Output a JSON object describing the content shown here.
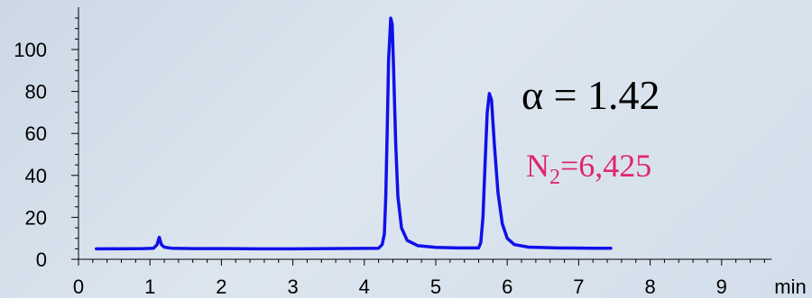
{
  "chart_data": {
    "type": "line",
    "title": "",
    "xlabel": "min",
    "ylabel": "",
    "xlim": [
      0,
      9.7
    ],
    "ylim": [
      0,
      118
    ],
    "x_ticks": [
      "0",
      "1",
      "2",
      "3",
      "4",
      "5",
      "6",
      "7",
      "8",
      "9"
    ],
    "y_ticks": [
      "0",
      "20",
      "40",
      "60",
      "80",
      "100"
    ],
    "grid": false,
    "series": [
      {
        "color": "#1010e8",
        "points": [
          [
            0.25,
            5.0
          ],
          [
            0.35,
            5.0
          ],
          [
            0.9,
            5.1
          ],
          [
            1.05,
            5.3
          ],
          [
            1.1,
            7.0
          ],
          [
            1.13,
            10.5
          ],
          [
            1.16,
            7.0
          ],
          [
            1.2,
            5.8
          ],
          [
            1.3,
            5.3
          ],
          [
            1.6,
            5.1
          ],
          [
            2.0,
            5.1
          ],
          [
            2.5,
            5.0
          ],
          [
            3.0,
            5.0
          ],
          [
            3.5,
            5.1
          ],
          [
            4.0,
            5.2
          ],
          [
            4.2,
            5.3
          ],
          [
            4.25,
            7.0
          ],
          [
            4.28,
            12.0
          ],
          [
            4.3,
            30.0
          ],
          [
            4.32,
            60.0
          ],
          [
            4.34,
            95.0
          ],
          [
            4.37,
            115.0
          ],
          [
            4.39,
            112.0
          ],
          [
            4.41,
            90.0
          ],
          [
            4.44,
            55.0
          ],
          [
            4.47,
            30.0
          ],
          [
            4.52,
            15.0
          ],
          [
            4.6,
            9.0
          ],
          [
            4.75,
            6.5
          ],
          [
            5.0,
            5.7
          ],
          [
            5.3,
            5.4
          ],
          [
            5.6,
            5.4
          ],
          [
            5.63,
            8.0
          ],
          [
            5.66,
            20.0
          ],
          [
            5.69,
            45.0
          ],
          [
            5.72,
            70.0
          ],
          [
            5.75,
            79.0
          ],
          [
            5.78,
            76.0
          ],
          [
            5.82,
            55.0
          ],
          [
            5.87,
            32.0
          ],
          [
            5.93,
            17.0
          ],
          [
            6.0,
            10.0
          ],
          [
            6.1,
            7.0
          ],
          [
            6.3,
            5.8
          ],
          [
            6.7,
            5.4
          ],
          [
            7.2,
            5.3
          ],
          [
            7.45,
            5.3
          ]
        ]
      }
    ],
    "annotations": {
      "alpha": "α = 1.42",
      "n_base": "N",
      "n_sub": "2",
      "n_value": "=6,425"
    }
  }
}
